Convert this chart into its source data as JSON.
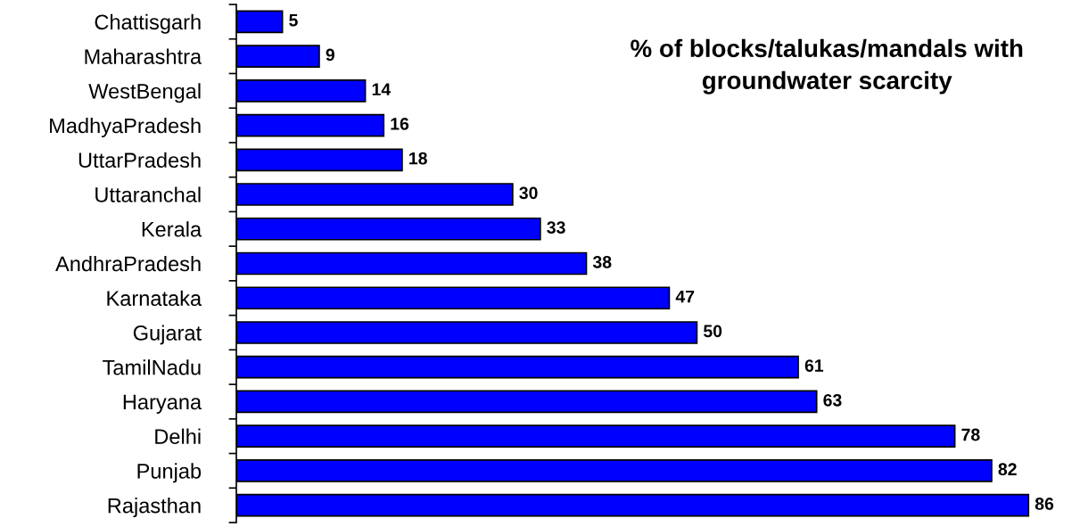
{
  "chart_data": {
    "type": "bar",
    "orientation": "horizontal",
    "title": "% of blocks/talukas/mandals with\ngroundwater scarcity",
    "categories": [
      "Chattisgarh",
      "Maharashtra",
      "WestBengal",
      "MadhyaPradesh",
      "UttarPradesh",
      "Uttaranchal",
      "Kerala",
      "AndhraPradesh",
      "Karnataka",
      "Gujarat",
      "TamilNadu",
      "Haryana",
      "Delhi",
      "Punjab",
      "Rajasthan"
    ],
    "values": [
      5,
      9,
      14,
      16,
      18,
      30,
      33,
      38,
      47,
      50,
      61,
      63,
      78,
      82,
      86
    ],
    "color": "#0000ff",
    "data_labels": true,
    "tick_labels": "y",
    "grid": false,
    "legend": false
  }
}
